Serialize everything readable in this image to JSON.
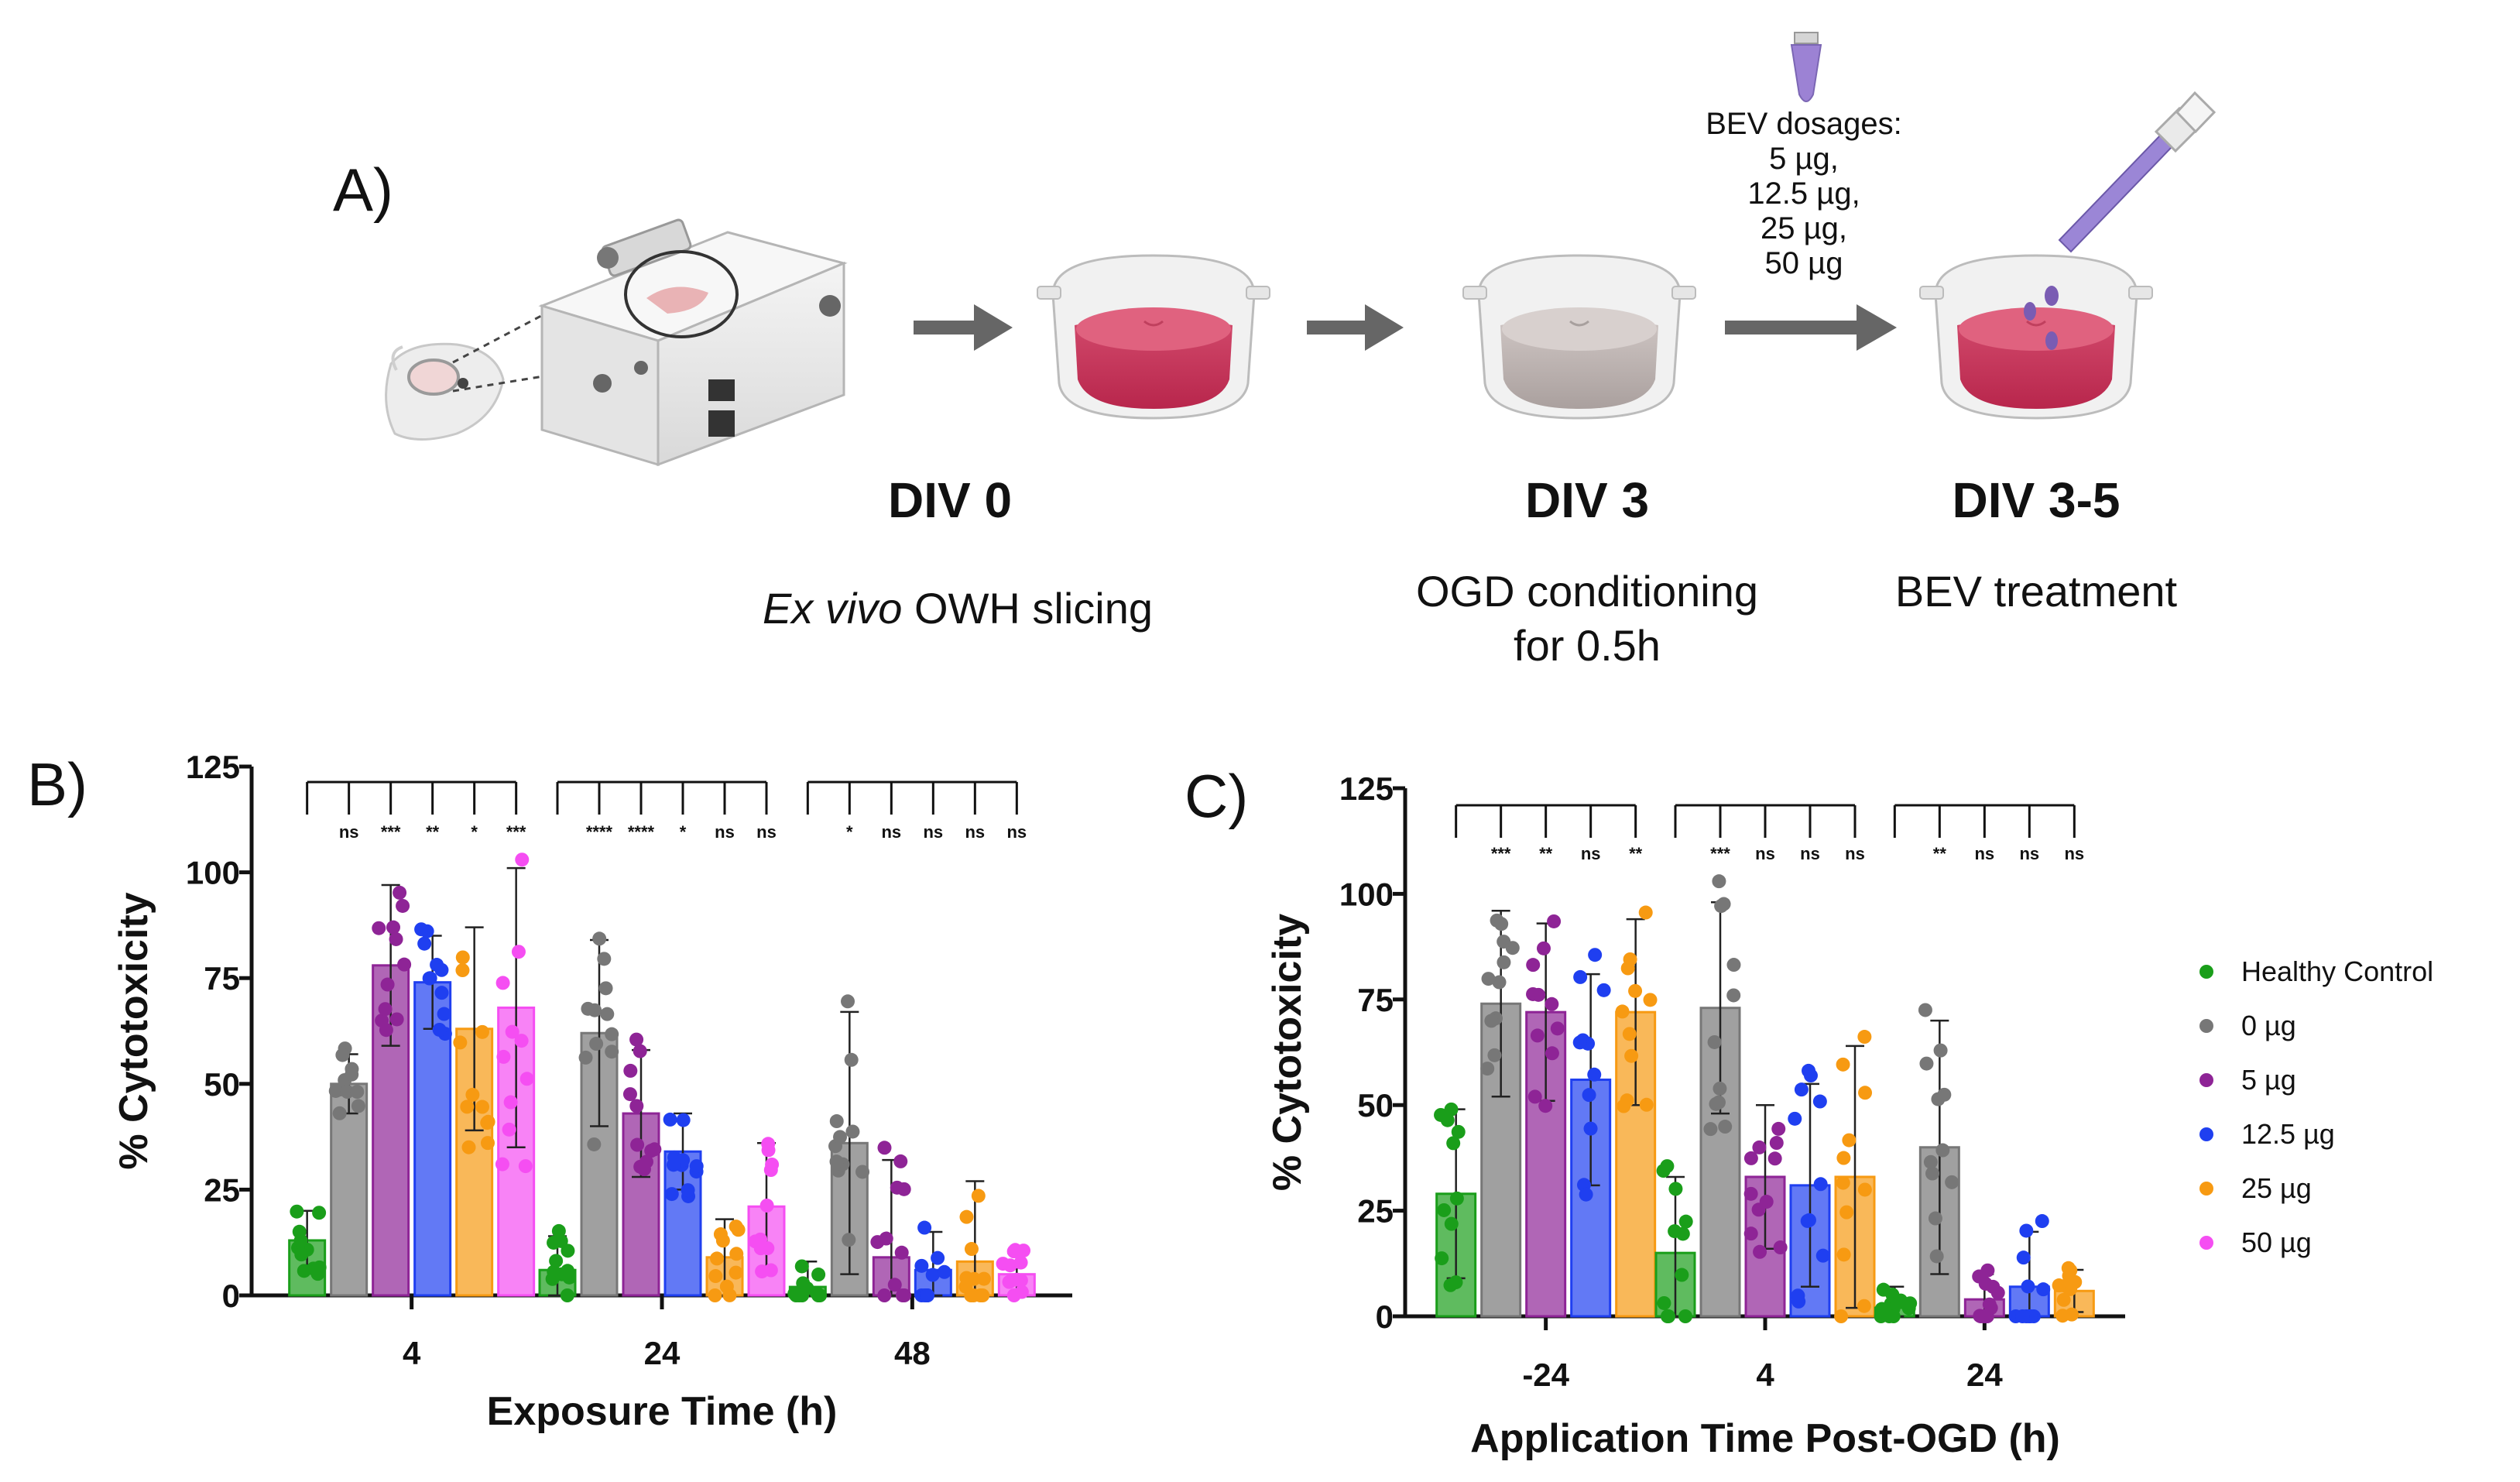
{
  "panel_a": {
    "letter": "A)",
    "stages": [
      {
        "title": "DIV 0",
        "desc_lines": [
          "Ex vivo OWH slicing"
        ]
      },
      {
        "title": "DIV 3",
        "desc_lines": [
          "OGD conditioning",
          "for 0.5h"
        ]
      },
      {
        "title": "DIV 3-5",
        "desc_lines": [
          "BEV treatment"
        ]
      }
    ],
    "desc_italic": "Ex vivo",
    "desc_rest": " OWH slicing",
    "dosages": [
      "BEV dosages:",
      "5 µg,",
      "12.5 µg,",
      "25 µg,",
      "50 µg"
    ]
  },
  "legend": {
    "items": [
      {
        "label": "Healthy Control",
        "color": "#1a9e1a"
      },
      {
        "label": "0 µg",
        "color": "#777777"
      },
      {
        "label": "5 µg",
        "color": "#8e2496"
      },
      {
        "label": "12.5 µg",
        "color": "#1f3ff0"
      },
      {
        "label": "25 µg",
        "color": "#f79a12"
      },
      {
        "label": "50 µg",
        "color": "#f54ef2"
      }
    ]
  },
  "chart_data": [
    {
      "panel": "B)",
      "type": "bar",
      "title": "",
      "xlabel": "Exposure Time (h)",
      "ylabel": "% Cytotoxicity",
      "ylim": [
        0,
        125
      ],
      "yticks": [
        0,
        25,
        50,
        75,
        100,
        125
      ],
      "categories": [
        "4",
        "24",
        "48"
      ],
      "series": [
        {
          "name": "Healthy Control",
          "color": "#1a9e1a",
          "values": [
            13,
            6,
            2
          ],
          "err": [
            7,
            8,
            6
          ]
        },
        {
          "name": "0 µg",
          "color": "#777777",
          "values": [
            50,
            62,
            36
          ],
          "err": [
            7,
            22,
            31
          ]
        },
        {
          "name": "5 µg",
          "color": "#8e2496",
          "values": [
            78,
            43,
            9
          ],
          "err": [
            19,
            15,
            23
          ]
        },
        {
          "name": "12.5 µg",
          "color": "#1f3ff0",
          "values": [
            74,
            34,
            6
          ],
          "err": [
            11,
            9,
            9
          ]
        },
        {
          "name": "25 µg",
          "color": "#f79a12",
          "values": [
            63,
            9,
            8
          ],
          "err": [
            24,
            9,
            19
          ]
        },
        {
          "name": "50 µg",
          "color": "#f54ef2",
          "values": [
            68,
            21,
            5
          ],
          "err": [
            33,
            15,
            5
          ]
        }
      ],
      "significance": [
        [
          "ns",
          "***",
          "**",
          "*",
          "***"
        ],
        [
          "****",
          "****",
          "*",
          "ns",
          "ns"
        ],
        [
          "*",
          "ns",
          "ns",
          "ns",
          "ns"
        ]
      ]
    },
    {
      "panel": "C)",
      "type": "bar",
      "title": "",
      "xlabel": "Application Time Post-OGD (h)",
      "ylabel": "% Cytotoxicity",
      "ylim": [
        0,
        125
      ],
      "yticks": [
        0,
        25,
        50,
        75,
        100,
        125
      ],
      "categories": [
        "-24",
        "4",
        "24"
      ],
      "series": [
        {
          "name": "Healthy Control",
          "color": "#1a9e1a",
          "values": [
            29,
            15,
            2
          ],
          "err": [
            20,
            18,
            5
          ]
        },
        {
          "name": "0 µg",
          "color": "#777777",
          "values": [
            74,
            73,
            40
          ],
          "err": [
            22,
            25,
            30
          ]
        },
        {
          "name": "5 µg",
          "color": "#8e2496",
          "values": [
            72,
            33,
            4
          ],
          "err": [
            21,
            17,
            6
          ]
        },
        {
          "name": "12.5 µg",
          "color": "#1f3ff0",
          "values": [
            56,
            31,
            7
          ],
          "err": [
            25,
            24,
            13
          ]
        },
        {
          "name": "25 µg",
          "color": "#f79a12",
          "values": [
            72,
            33,
            6
          ],
          "err": [
            22,
            31,
            5
          ]
        }
      ],
      "significance": [
        [
          "***",
          "**",
          "ns",
          "**"
        ],
        [
          "***",
          "ns",
          "ns",
          "ns"
        ],
        [
          "**",
          "ns",
          "ns",
          "ns"
        ]
      ]
    }
  ]
}
